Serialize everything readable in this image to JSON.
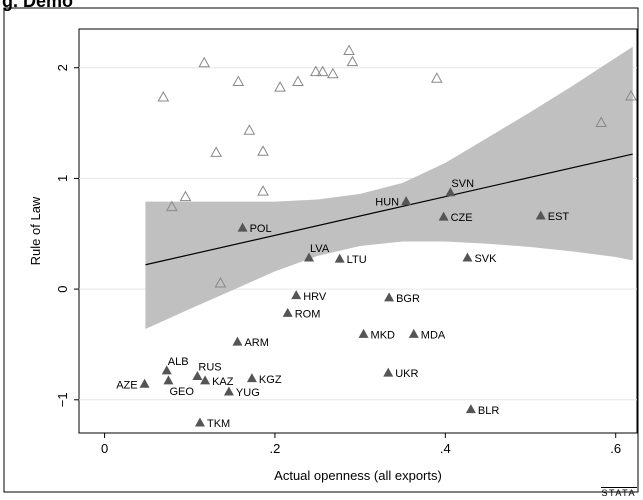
{
  "header": {
    "title_fragment": "g. Demo"
  },
  "chart_data": {
    "type": "scatter",
    "xlabel": "Actual openness (all exports)",
    "ylabel": "Rule of Law",
    "xlim": [
      -0.03,
      0.625
    ],
    "ylim": [
      -1.3,
      2.35
    ],
    "xticks": [
      0,
      0.2,
      0.4,
      0.6
    ],
    "xtick_labels": [
      "0",
      ".2",
      ".4",
      ".6"
    ],
    "yticks": [
      -1,
      0,
      1,
      2
    ],
    "ytick_labels": [
      "−1",
      "0",
      "1",
      "2"
    ],
    "grid": "horizontal",
    "legend": "none",
    "colors": {
      "band": "#c0c0c0",
      "filled_marker": "#555555",
      "hollow_marker": "#888888",
      "fit_line": "#000000"
    },
    "fit_line": {
      "x": [
        0.048,
        0.62
      ],
      "y": [
        0.22,
        1.22
      ]
    },
    "confidence_band": {
      "x": [
        0.048,
        0.1,
        0.15,
        0.2,
        0.25,
        0.3,
        0.35,
        0.4,
        0.45,
        0.5,
        0.55,
        0.6,
        0.62
      ],
      "upper": [
        0.79,
        0.79,
        0.79,
        0.79,
        0.81,
        0.86,
        0.96,
        1.14,
        1.37,
        1.6,
        1.84,
        2.09,
        2.19
      ],
      "lower": [
        -0.36,
        -0.18,
        -0.01,
        0.16,
        0.3,
        0.39,
        0.43,
        0.43,
        0.41,
        0.38,
        0.34,
        0.29,
        0.26
      ]
    },
    "labeled_points": [
      {
        "label": "SVN",
        "x": 0.406,
        "y": 0.87
      },
      {
        "label": "HUN",
        "x": 0.354,
        "y": 0.79
      },
      {
        "label": "CZE",
        "x": 0.398,
        "y": 0.65
      },
      {
        "label": "EST",
        "x": 0.512,
        "y": 0.66
      },
      {
        "label": "POL",
        "x": 0.162,
        "y": 0.55
      },
      {
        "label": "LVA",
        "x": 0.24,
        "y": 0.28
      },
      {
        "label": "LTU",
        "x": 0.276,
        "y": 0.27
      },
      {
        "label": "SVK",
        "x": 0.426,
        "y": 0.28
      },
      {
        "label": "HRV",
        "x": 0.225,
        "y": -0.06
      },
      {
        "label": "BGR",
        "x": 0.334,
        "y": -0.08
      },
      {
        "label": "ROM",
        "x": 0.215,
        "y": -0.22
      },
      {
        "label": "MKD",
        "x": 0.304,
        "y": -0.41
      },
      {
        "label": "MDA",
        "x": 0.363,
        "y": -0.41
      },
      {
        "label": "ARM",
        "x": 0.156,
        "y": -0.48
      },
      {
        "label": "ALB",
        "x": 0.073,
        "y": -0.74
      },
      {
        "label": "RUS",
        "x": 0.109,
        "y": -0.79
      },
      {
        "label": "UKR",
        "x": 0.333,
        "y": -0.76
      },
      {
        "label": "KAZ",
        "x": 0.118,
        "y": -0.83
      },
      {
        "label": "KGZ",
        "x": 0.173,
        "y": -0.81
      },
      {
        "label": "AZE",
        "x": 0.047,
        "y": -0.86
      },
      {
        "label": "GEO",
        "x": 0.075,
        "y": -0.83
      },
      {
        "label": "YUG",
        "x": 0.146,
        "y": -0.93
      },
      {
        "label": "BLR",
        "x": 0.43,
        "y": -1.09
      },
      {
        "label": "TKM",
        "x": 0.112,
        "y": -1.21
      }
    ],
    "hollow_points": [
      {
        "x": 0.117,
        "y": 2.04
      },
      {
        "x": 0.287,
        "y": 2.15
      },
      {
        "x": 0.291,
        "y": 2.05
      },
      {
        "x": 0.069,
        "y": 1.73
      },
      {
        "x": 0.157,
        "y": 1.87
      },
      {
        "x": 0.206,
        "y": 1.82
      },
      {
        "x": 0.227,
        "y": 1.87
      },
      {
        "x": 0.248,
        "y": 1.96
      },
      {
        "x": 0.256,
        "y": 1.96
      },
      {
        "x": 0.268,
        "y": 1.94
      },
      {
        "x": 0.39,
        "y": 1.9
      },
      {
        "x": 0.618,
        "y": 1.74
      },
      {
        "x": 0.583,
        "y": 1.5
      },
      {
        "x": 0.17,
        "y": 1.43
      },
      {
        "x": 0.186,
        "y": 1.24
      },
      {
        "x": 0.131,
        "y": 1.23
      },
      {
        "x": 0.095,
        "y": 0.83
      },
      {
        "x": 0.079,
        "y": 0.74
      },
      {
        "x": 0.186,
        "y": 0.88
      },
      {
        "x": 0.136,
        "y": 0.05
      }
    ],
    "label_placement": {
      "HUN": "left",
      "AZE": "left",
      "GEO": "below-right",
      "ALB": "above-right",
      "RUS": "above-right",
      "SVN": "above-right",
      "LVA": "above-right"
    }
  },
  "footer": {
    "logo_text": "STATA"
  }
}
